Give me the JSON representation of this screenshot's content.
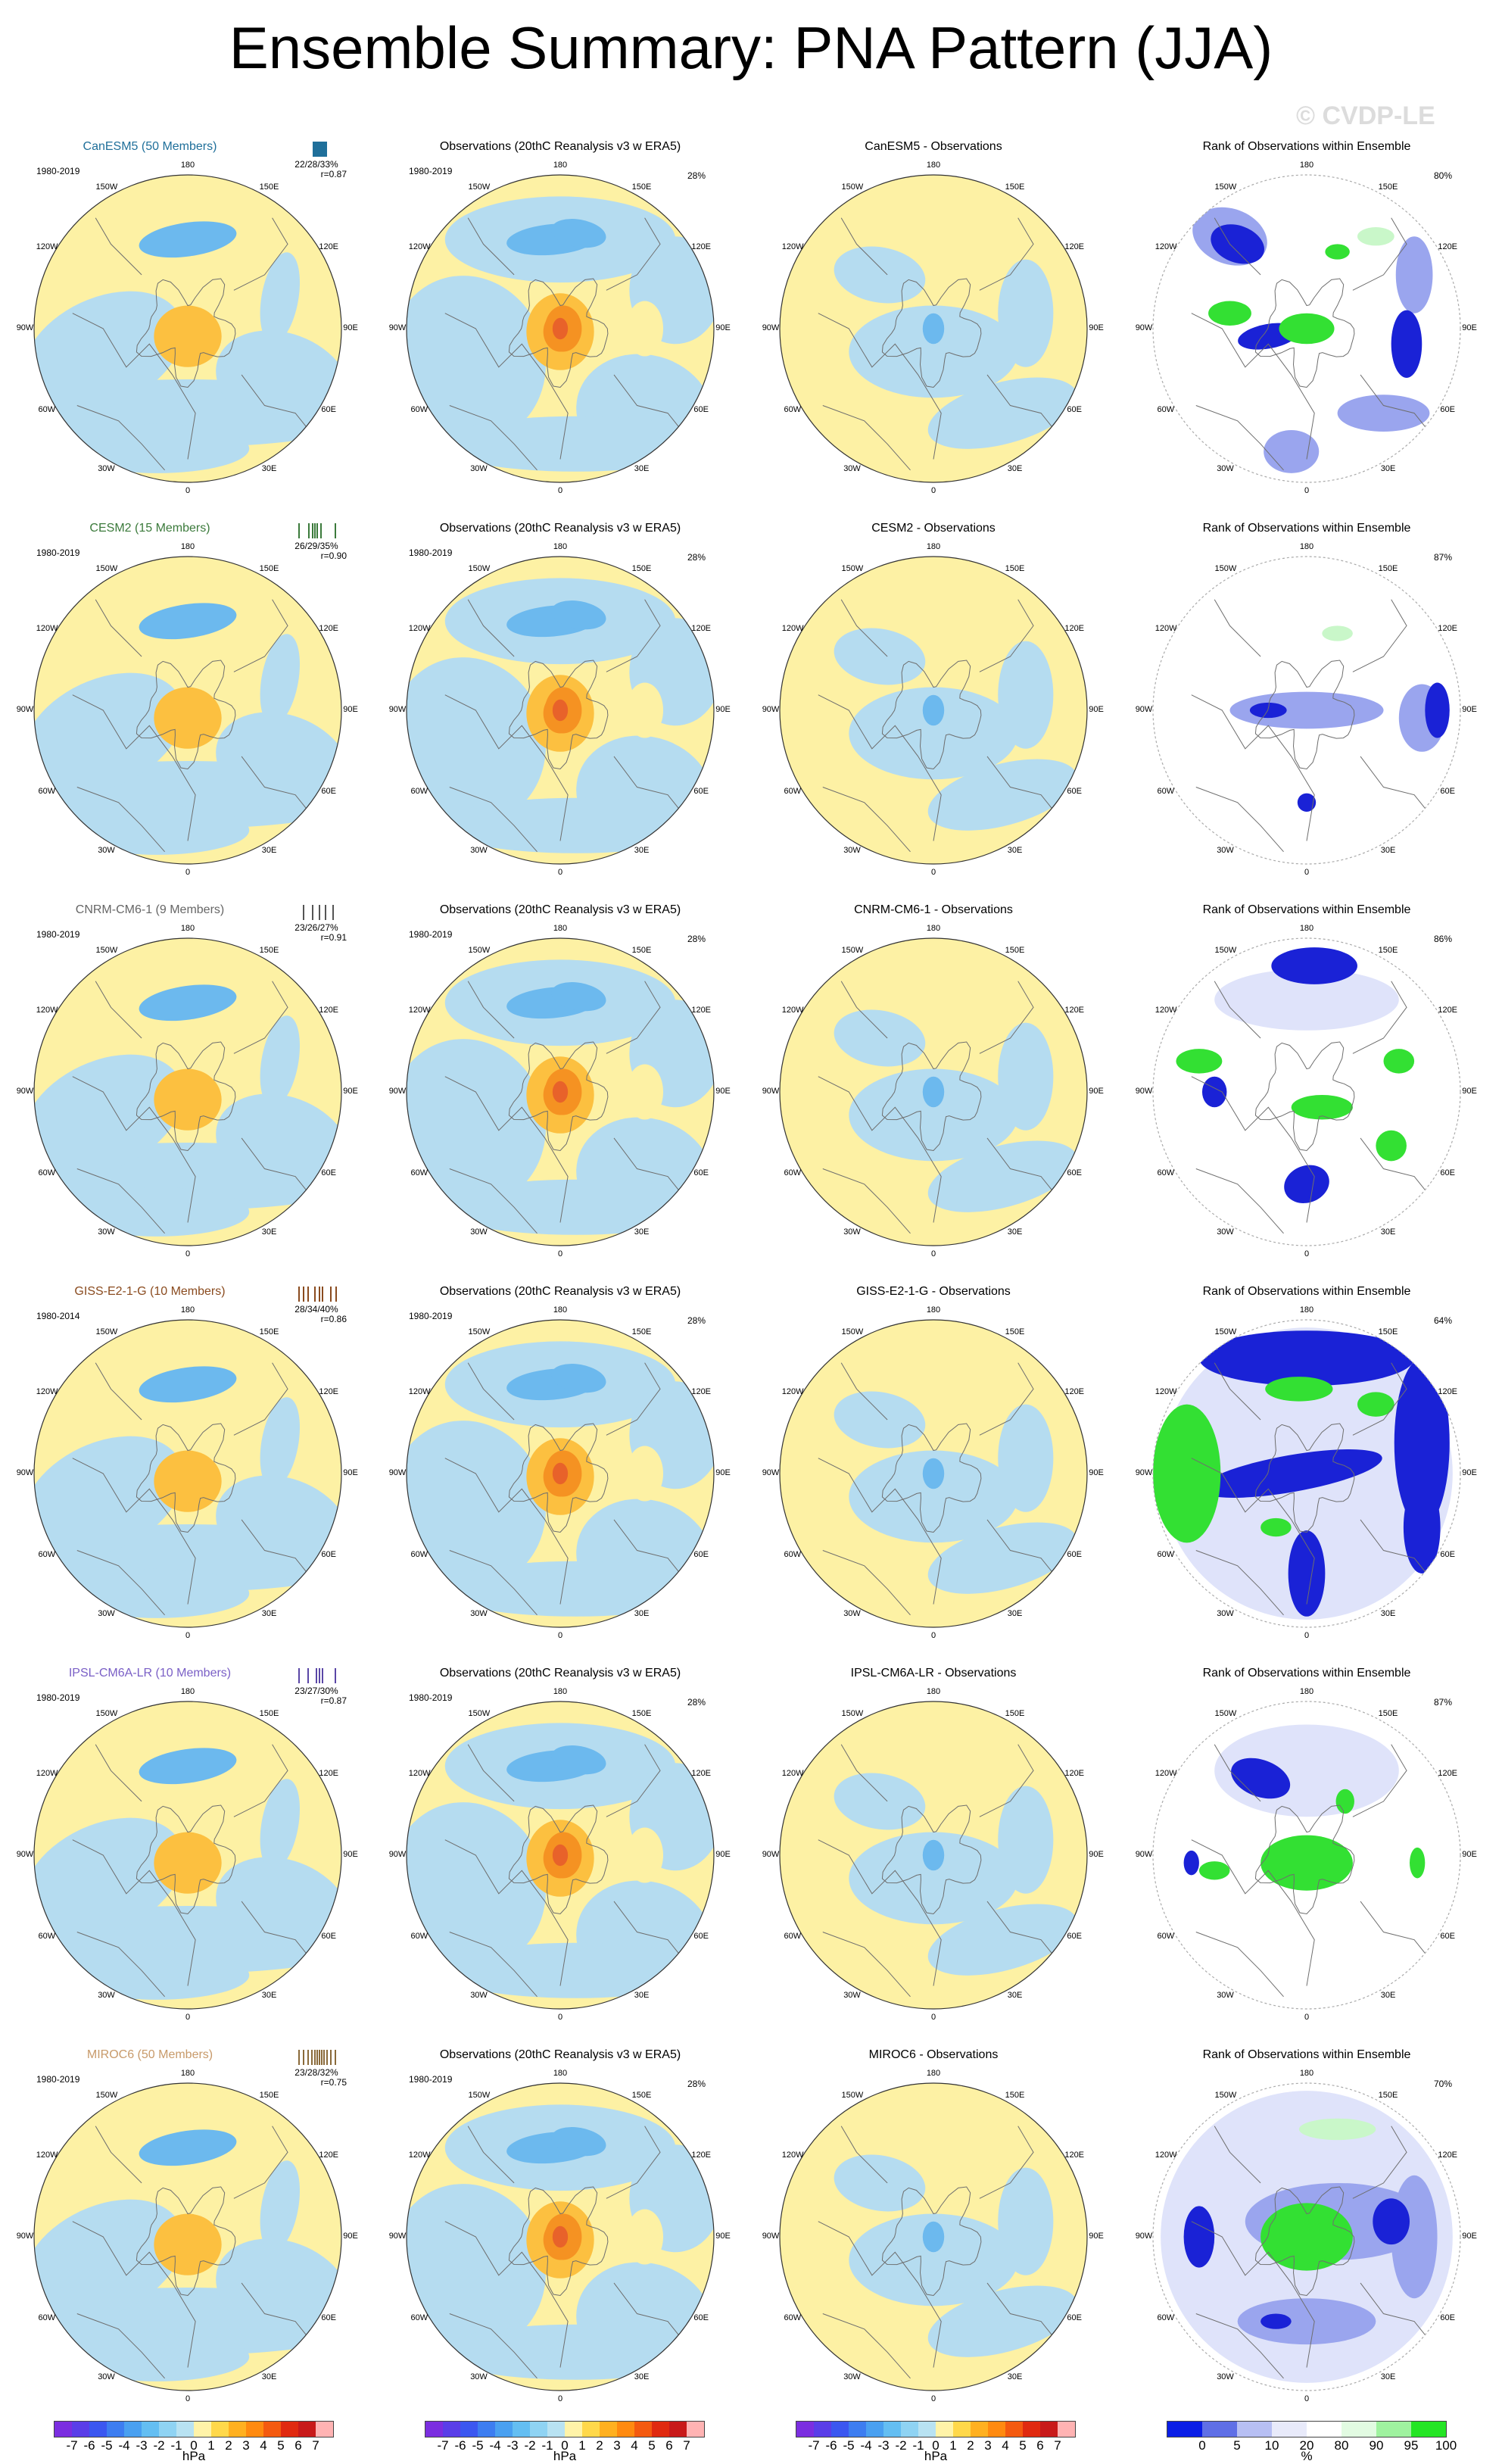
{
  "title": "Ensemble Summary: PNA Pattern (JJA)",
  "watermark": "© CVDP-LE",
  "lon_labels": [
    "180",
    "150E",
    "120E",
    "90E",
    "60E",
    "30E",
    "0",
    "30W",
    "60W",
    "90W",
    "120W",
    "150W"
  ],
  "rows": [
    {
      "model": {
        "title": "CanESM5 (50 Members)",
        "color": "#1f6f9a",
        "period": "1980-2019",
        "stats": "22/28/33%",
        "corr": "r=0.87",
        "strip": [
          0.42,
          0.45,
          0.48,
          0.5,
          0.52,
          0.55,
          0.57,
          0.6,
          0.63,
          0.66,
          0.7
        ],
        "strip_color": "#1f6f9a"
      },
      "obs": {
        "title": "Observations (20thC Reanalysis v3 w ERA5)",
        "period": "1980-2019",
        "pct": "28%"
      },
      "diff": {
        "title": "CanESM5 - Observations"
      },
      "rank": {
        "title": "Rank of Observations within Ensemble",
        "pct": "80%"
      }
    },
    {
      "model": {
        "title": "CESM2 (15 Members)",
        "color": "#3b7a3b",
        "period": "1980-2019",
        "stats": "26/29/35%",
        "corr": "r=0.90",
        "strip": [
          0.1,
          0.32,
          0.4,
          0.45,
          0.5,
          0.58,
          0.9
        ],
        "strip_color": "#3b7a3b"
      },
      "obs": {
        "title": "Observations (20thC Reanalysis v3 w ERA5)",
        "period": "1980-2019",
        "pct": "28%"
      },
      "diff": {
        "title": "CESM2 - Observations"
      },
      "rank": {
        "title": "Rank of Observations within Ensemble",
        "pct": "87%"
      }
    },
    {
      "model": {
        "title": "CNRM-CM6-1 (9 Members)",
        "color": "#666666",
        "period": "1980-2019",
        "stats": "23/26/27%",
        "corr": "r=0.91",
        "strip": [
          0.2,
          0.4,
          0.55,
          0.68,
          0.85
        ],
        "strip_color": "#555555"
      },
      "obs": {
        "title": "Observations (20thC Reanalysis v3 w ERA5)",
        "period": "1980-2019",
        "pct": "28%"
      },
      "diff": {
        "title": "CNRM-CM6-1 - Observations"
      },
      "rank": {
        "title": "Rank of Observations within Ensemble",
        "pct": "86%"
      }
    },
    {
      "model": {
        "title": "GISS-E2-1-G (10 Members)",
        "color": "#8a4b1f",
        "period": "1980-2014",
        "stats": "28/34/40%",
        "corr": "r=0.86",
        "strip": [
          0.1,
          0.2,
          0.3,
          0.45,
          0.55,
          0.62,
          0.8,
          0.92
        ],
        "strip_color": "#8a4b1f"
      },
      "obs": {
        "title": "Observations (20thC Reanalysis v3 w ERA5)",
        "period": "1980-2019",
        "pct": "28%"
      },
      "diff": {
        "title": "GISS-E2-1-G - Observations"
      },
      "rank": {
        "title": "Rank of Observations within Ensemble",
        "pct": "64%"
      }
    },
    {
      "model": {
        "title": "IPSL-CM6A-LR (10 Members)",
        "color": "#7a5fc6",
        "period": "1980-2019",
        "stats": "23/27/30%",
        "corr": "r=0.87",
        "strip": [
          0.1,
          0.3,
          0.48,
          0.55,
          0.62,
          0.9
        ],
        "strip_color": "#5a46a6"
      },
      "obs": {
        "title": "Observations (20thC Reanalysis v3 w ERA5)",
        "period": "1980-2019",
        "pct": "28%"
      },
      "diff": {
        "title": "IPSL-CM6A-LR - Observations"
      },
      "rank": {
        "title": "Rank of Observations within Ensemble",
        "pct": "87%"
      }
    },
    {
      "model": {
        "title": "MIROC6 (50 Members)",
        "color": "#c89a6a",
        "period": "1980-2019",
        "stats": "23/28/32%",
        "corr": "r=0.75",
        "strip": [
          0.1,
          0.2,
          0.3,
          0.38,
          0.45,
          0.5,
          0.55,
          0.6,
          0.65,
          0.72,
          0.8,
          0.9
        ],
        "strip_color": "#8a6a3a"
      },
      "obs": {
        "title": "Observations (20thC Reanalysis v3 w ERA5)",
        "period": "1980-2019",
        "pct": "28%"
      },
      "diff": {
        "title": "MIROC6 - Observations"
      },
      "rank": {
        "title": "Rank of Observations within Ensemble",
        "pct": "70%"
      }
    }
  ],
  "colorbars": {
    "hpa": {
      "ticks": [
        "-7",
        "-6",
        "-5",
        "-4",
        "-3",
        "-2",
        "-1",
        "0",
        "1",
        "2",
        "3",
        "4",
        "5",
        "6",
        "7"
      ],
      "unit": "hPa",
      "colors": [
        "#7b2ee0",
        "#5a3ee8",
        "#3b57f0",
        "#3d7df0",
        "#4aa0f0",
        "#64bef2",
        "#8fd3f3",
        "#b8e2f2",
        "#fff3a8",
        "#ffd84a",
        "#ffb020",
        "#ff8a10",
        "#f45a10",
        "#e02a10",
        "#c81a1a",
        "#ffb3b3"
      ]
    },
    "rank": {
      "ticks": [
        "0",
        "5",
        "10",
        "20",
        "80",
        "90",
        "95",
        "100"
      ],
      "unit": "%",
      "colors": [
        "#0a1ee6",
        "#5f6fe6",
        "#b7bff3",
        "#e8eafa",
        "#ffffff",
        "#e2fbe2",
        "#9ff29f",
        "#25e525"
      ]
    }
  }
}
